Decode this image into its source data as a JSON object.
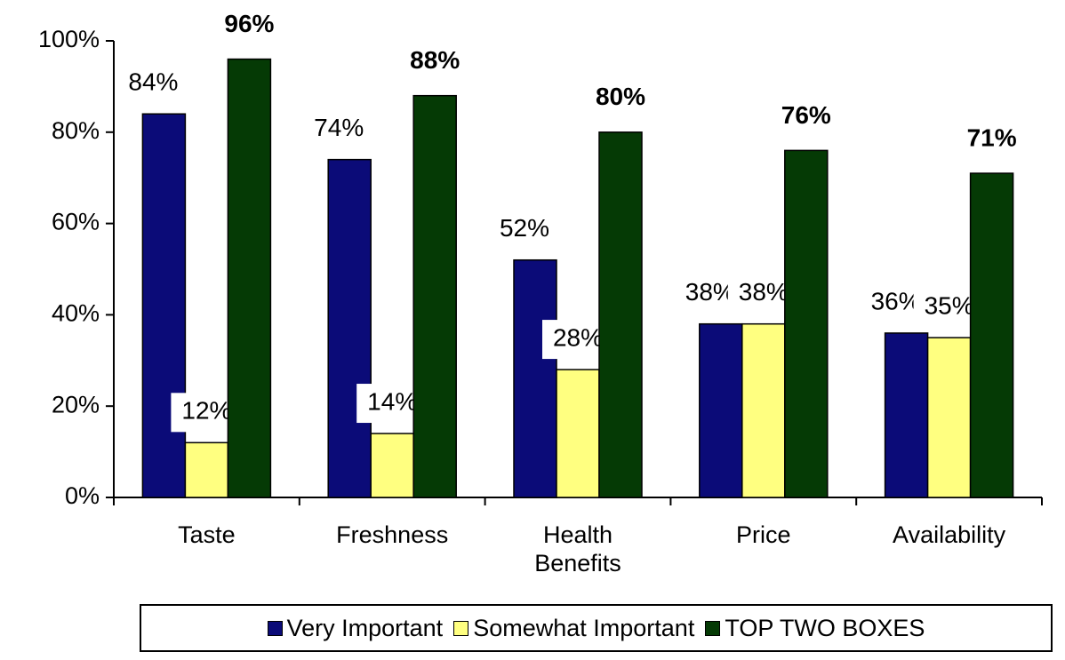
{
  "chart_data": {
    "type": "bar",
    "categories": [
      "Taste",
      "Freshness",
      "Health Benefits",
      "Price",
      "Availability"
    ],
    "series": [
      {
        "name": "Very Important",
        "color": "#0b0b78",
        "values": [
          84,
          74,
          52,
          38,
          36
        ],
        "value_labels": [
          "84%",
          "74%",
          "52%",
          "38%",
          "36%"
        ]
      },
      {
        "name": "Somewhat Important",
        "color": "#ffff80",
        "values": [
          12,
          14,
          28,
          38,
          35
        ],
        "value_labels": [
          "12%",
          "14%",
          "28%",
          "38%",
          "35%"
        ]
      },
      {
        "name": "TOP TWO BOXES",
        "color": "#053a05",
        "values": [
          96,
          88,
          80,
          76,
          71
        ],
        "value_labels": [
          "96%",
          "88%",
          "80%",
          "76%",
          "71%"
        ]
      }
    ],
    "ylim": [
      0,
      100
    ],
    "yticks": [
      {
        "value": 0,
        "label": "0%"
      },
      {
        "value": 20,
        "label": "20%"
      },
      {
        "value": 40,
        "label": "40%"
      },
      {
        "value": 60,
        "label": "60%"
      },
      {
        "value": 80,
        "label": "80%"
      },
      {
        "value": 100,
        "label": "100%"
      }
    ],
    "legend": "bottom"
  }
}
